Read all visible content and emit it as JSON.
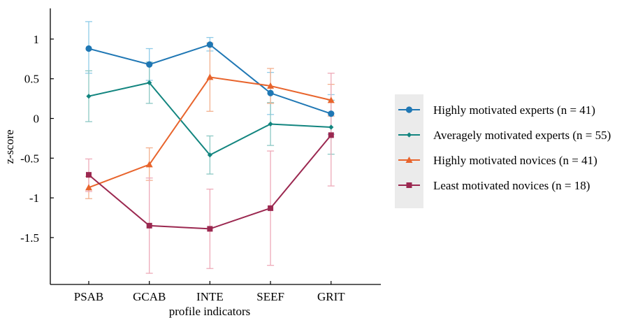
{
  "chart_data": {
    "type": "line",
    "title": "",
    "xlabel": "profile indicators",
    "ylabel": "z-score",
    "categories": [
      "PSAB",
      "GCAB",
      "INTE",
      "SEEF",
      "GRIT"
    ],
    "ylim": [
      -2.1,
      1.35
    ],
    "yticks": [
      1,
      0.5,
      0,
      -0.5,
      -1,
      -1.5
    ],
    "ytick_labels": [
      "1",
      "0.5",
      "0",
      "-0.5",
      "-1",
      "-1.5"
    ],
    "grid": false,
    "legend_position": "right",
    "series": [
      {
        "name": "Highly motivated experts (n = 41)",
        "color": "#1f77b4",
        "error_color": "#8fcbe8",
        "marker": "circle",
        "values": [
          0.88,
          0.68,
          0.93,
          0.32,
          0.06
        ],
        "err_low": [
          0.57,
          0.48,
          0.85,
          0.05,
          -0.2
        ],
        "err_high": [
          1.22,
          0.88,
          1.02,
          0.58,
          0.3
        ]
      },
      {
        "name": "Averagely motivated experts (n = 55)",
        "color": "#12857f",
        "error_color": "#8cc8c4",
        "marker": "diamond",
        "values": [
          0.28,
          0.45,
          -0.46,
          -0.07,
          -0.11
        ],
        "err_low": [
          -0.04,
          0.19,
          -0.7,
          -0.34,
          -0.45
        ],
        "err_high": [
          0.6,
          0.71,
          -0.22,
          0.2,
          0.23
        ]
      },
      {
        "name": "Highly motivated novices (n = 41)",
        "color": "#e8642c",
        "error_color": "#f3b08e",
        "marker": "triangle",
        "values": [
          -0.87,
          -0.58,
          0.52,
          0.41,
          0.23
        ],
        "err_low": [
          -1.01,
          -0.78,
          0.09,
          0.19,
          0.03
        ],
        "err_high": [
          -0.73,
          -0.37,
          0.95,
          0.63,
          0.43
        ]
      },
      {
        "name": "Least motivated novices (n = 18)",
        "color": "#9b2850",
        "error_color": "#eeaab8",
        "marker": "square",
        "values": [
          -0.71,
          -1.35,
          -1.39,
          -1.13,
          -0.21
        ],
        "err_low": [
          -0.92,
          -1.95,
          -1.89,
          -1.85,
          -0.85
        ],
        "err_high": [
          -0.51,
          -0.75,
          -0.89,
          -0.41,
          0.57
        ]
      }
    ]
  }
}
